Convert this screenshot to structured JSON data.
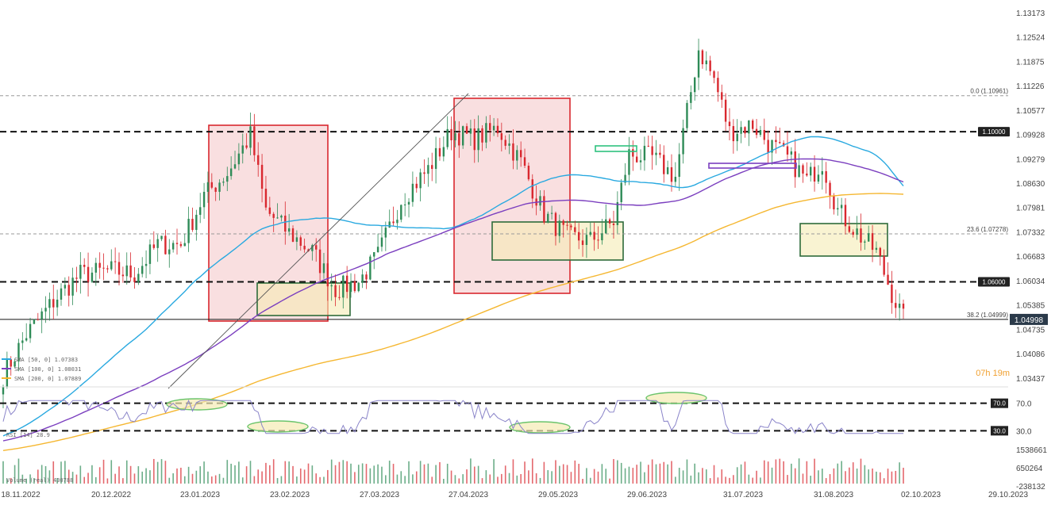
{
  "chart_data": {
    "type": "candlestick",
    "y_axis_ticks": [
      "1.13173",
      "1.12524",
      "1.11875",
      "1.11226",
      "1.10577",
      "1.09928",
      "1.09279",
      "1.08630",
      "1.07981",
      "1.07332",
      "1.06683",
      "1.06034",
      "1.05385",
      "1.04735",
      "1.04086",
      "1.03437"
    ],
    "ylim": [
      1.032,
      1.133
    ],
    "x_axis_ticks": [
      "18.11.2022",
      "20.12.2022",
      "23.01.2023",
      "23.02.2023",
      "27.03.2023",
      "27.04.2023",
      "29.05.2023",
      "29.06.2023",
      "31.07.2023",
      "31.08.2023",
      "02.10.2023",
      "29.10.2023"
    ],
    "current_price": "1.04998",
    "countdown": {
      "hours": "07",
      "h": "h",
      "minutes": "19",
      "m": "m"
    },
    "levels": [
      {
        "value": 1.1,
        "label": "1.10000"
      },
      {
        "value": 1.06,
        "label": "1.06000"
      }
    ],
    "fib": [
      {
        "value": 1.10961,
        "label": "0.0 (1.10961)"
      },
      {
        "value": 1.07278,
        "label": "23.6 (1.07278)"
      },
      {
        "value": 1.04999,
        "label": "38.2 (1.04999)"
      }
    ],
    "legend": [
      {
        "text": "SMA [50, 0] 1.07383",
        "color": "#29a9e0"
      },
      {
        "text": "SMA [100, 0] 1.08031",
        "color": "#7b3fbf"
      },
      {
        "text": "SMA [200, 0] 1.07889",
        "color": "#f5b731"
      }
    ],
    "rsi": {
      "label": "RSI [14] 28.9",
      "ticks": [
        "70.0",
        "30.0"
      ],
      "levels": [
        70,
        30
      ]
    },
    "volume": {
      "label": "Volume (real) 430788",
      "ticks": [
        "1538661",
        "650264",
        "-238132"
      ]
    },
    "colors": {
      "up": "#2e8b57",
      "down": "#d9282f",
      "sma50": "#29a9e0",
      "sma100": "#7b3fbf",
      "sma200": "#f5b731",
      "zone_red": "#d9282f",
      "zone_green": "#2e6b3a",
      "countdown": "#f0a030"
    }
  }
}
